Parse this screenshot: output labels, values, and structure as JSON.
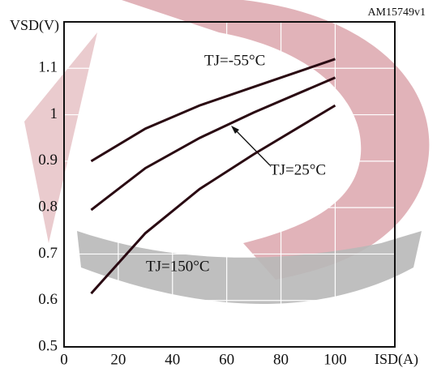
{
  "chart_data": {
    "type": "line",
    "code": "AM15749v1",
    "ylabel": "VSD(V)",
    "xlabel": "ISD(A)",
    "xlim": [
      0,
      122
    ],
    "xticks": [
      0,
      20,
      40,
      60,
      80,
      100
    ],
    "ylim": [
      0.5,
      1.2
    ],
    "yticks": [
      0.5,
      0.6,
      0.7,
      0.8,
      0.9,
      1,
      1.1
    ],
    "grid": true,
    "x": [
      10,
      30,
      50,
      70,
      90,
      100
    ],
    "series": [
      {
        "name": "TJ=-55°C",
        "color": "#2a0a12",
        "values": [
          0.9,
          0.97,
          1.02,
          1.06,
          1.1,
          1.12
        ]
      },
      {
        "name": "TJ=25°C",
        "color": "#2a0a12",
        "values": [
          0.795,
          0.885,
          0.95,
          1.005,
          1.055,
          1.08
        ]
      },
      {
        "name": "TJ=150°C",
        "color": "#2a0a12",
        "values": [
          0.615,
          0.745,
          0.84,
          0.915,
          0.985,
          1.02
        ]
      }
    ]
  }
}
